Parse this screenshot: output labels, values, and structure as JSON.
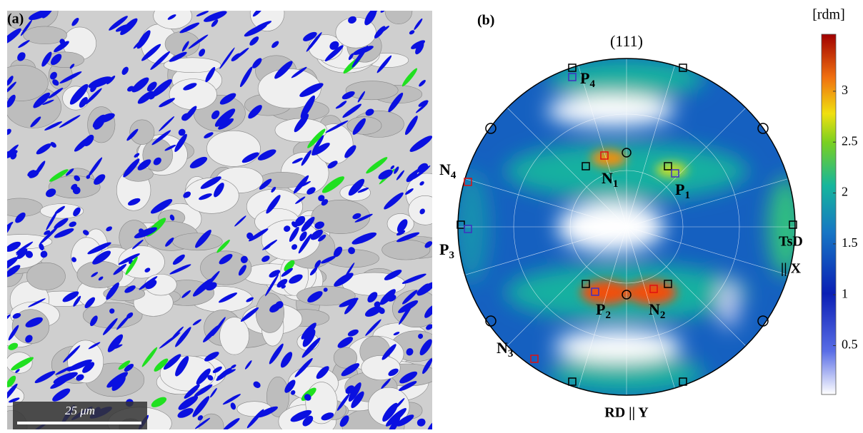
{
  "panel_a": {
    "label": "(a)",
    "scale_bar": "25 μm"
  },
  "panel_b": {
    "label": "(b)",
    "title": "(111)",
    "x_axis": [
      "TsD",
      "|| X"
    ],
    "y_axis": "RD || Y",
    "points": [
      {
        "main": "P",
        "sub": "4"
      },
      {
        "main": "N",
        "sub": "1"
      },
      {
        "main": "P",
        "sub": "1"
      },
      {
        "main": "N",
        "sub": "4"
      },
      {
        "main": "P",
        "sub": "3"
      },
      {
        "main": "P",
        "sub": "2"
      },
      {
        "main": "N",
        "sub": "2"
      },
      {
        "main": "N",
        "sub": "3"
      }
    ]
  },
  "colorbar": {
    "label": "[rdm]",
    "lim": [
      0.02,
      3.56
    ],
    "ticks": [
      0.5,
      1,
      1.5,
      2,
      2.5,
      3
    ]
  }
}
